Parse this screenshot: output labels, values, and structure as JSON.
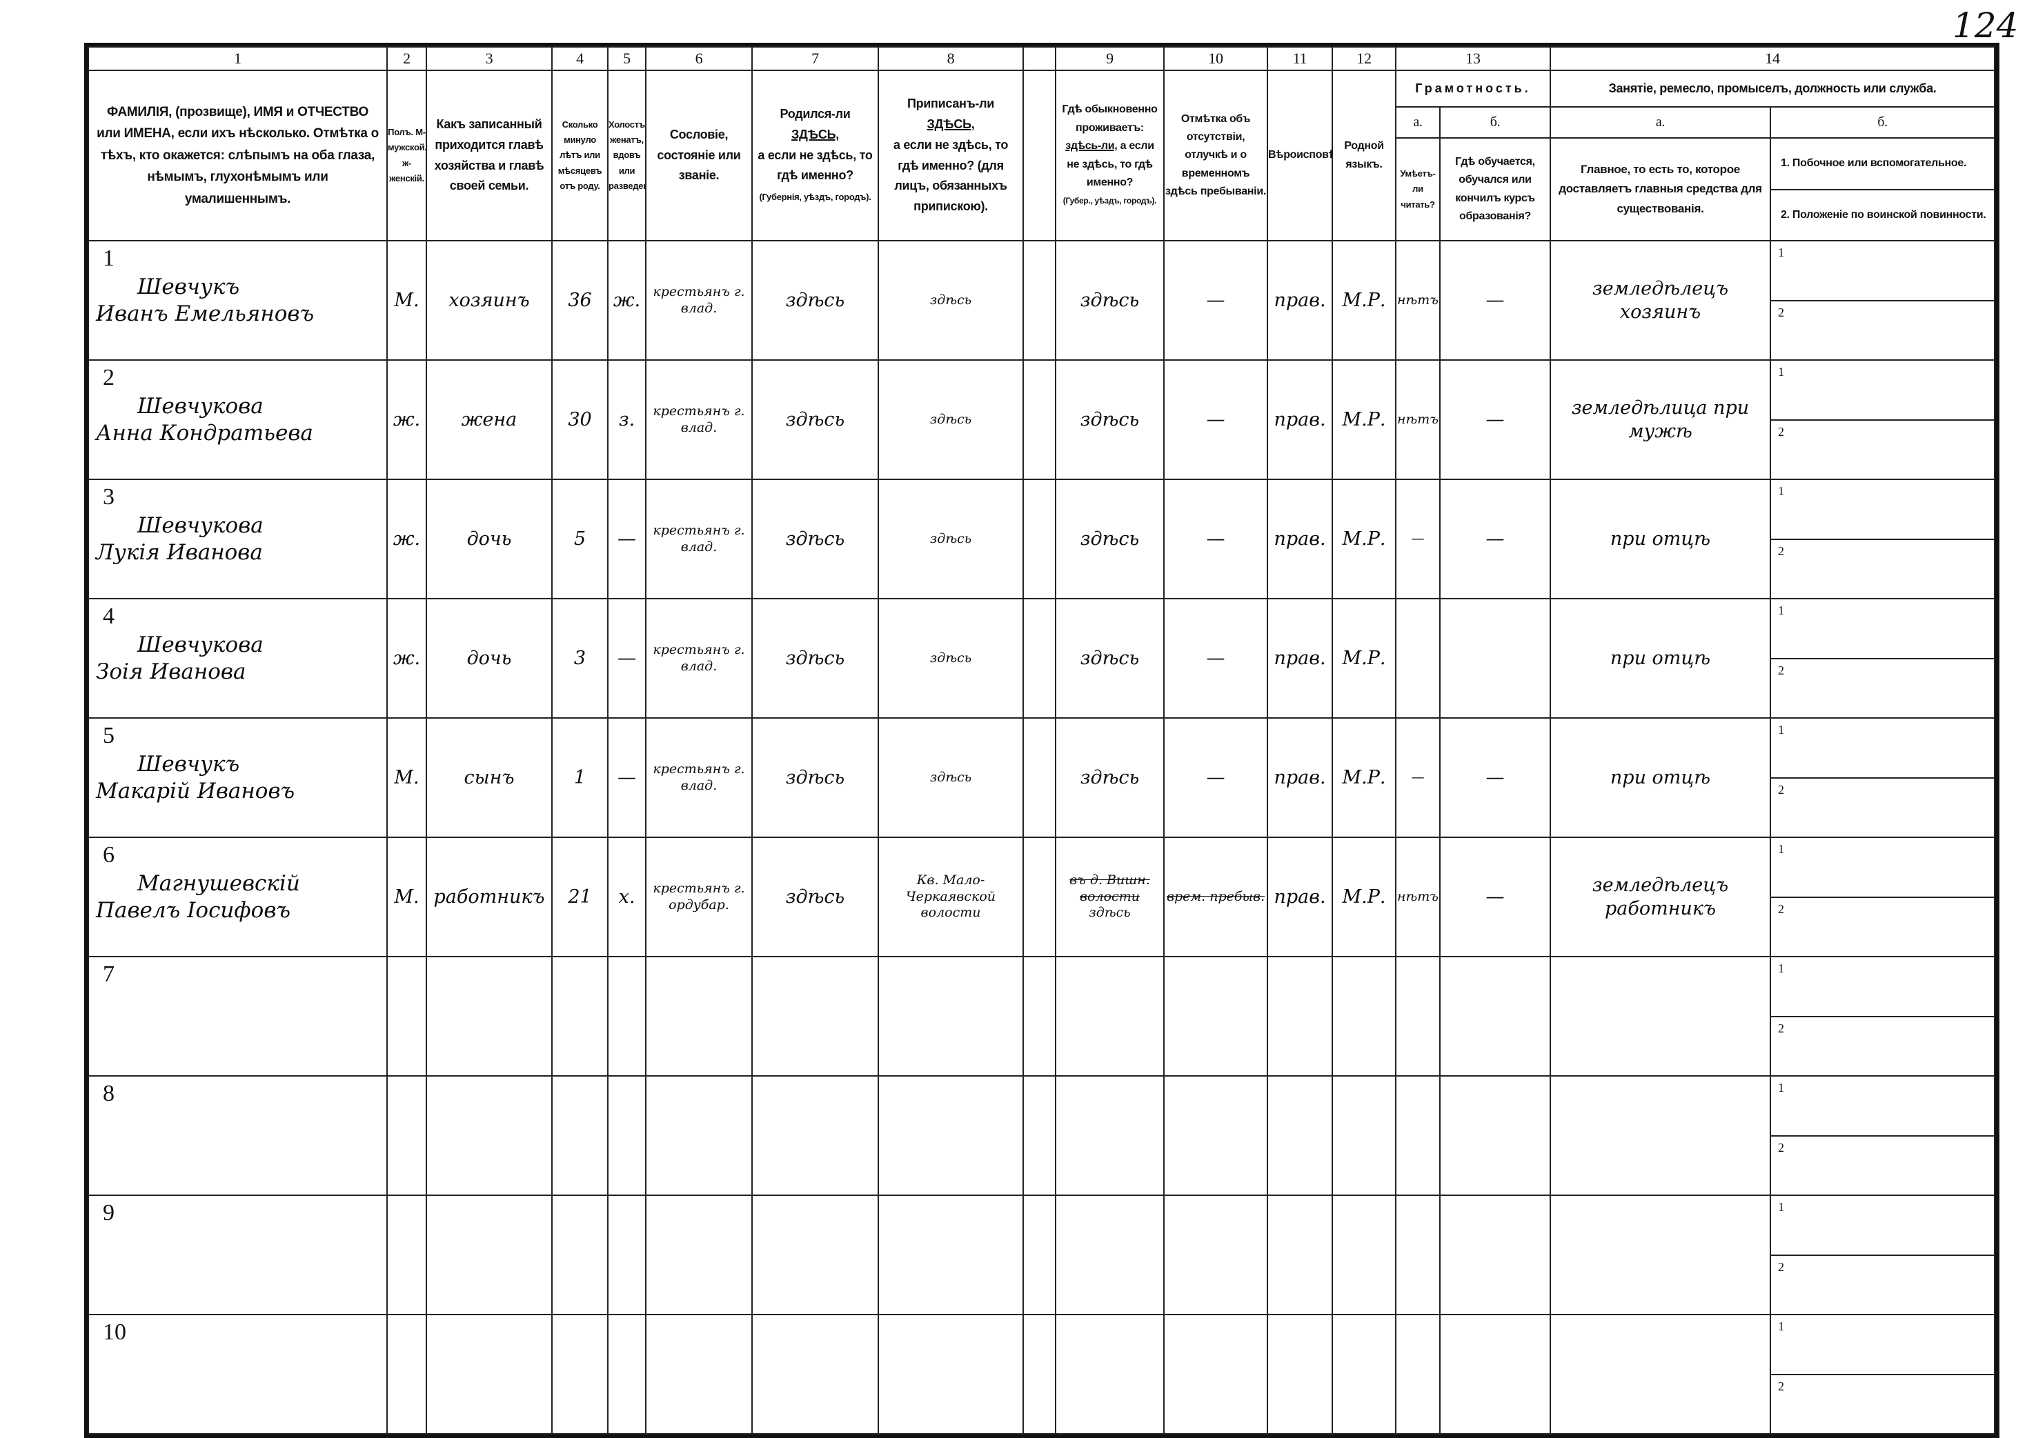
{
  "page_number": "124",
  "header": {
    "col_numbers": [
      "1",
      "2",
      "3",
      "4",
      "5",
      "6",
      "7",
      "8",
      "",
      "9",
      "10",
      "11",
      "12",
      "13",
      "14"
    ],
    "col1": "ФАМИЛІЯ, (прозвище), ИМЯ и ОТЧЕСТВО или ИМЕНА, если ихъ нѣсколько. Отмѣтка о тѣхъ, кто окажется: слѣпымъ на оба глаза, нѣмымъ, глухонѣмымъ или умалишеннымъ.",
    "col2": "Полъ. М-мужской. ж-женскій.",
    "col3": "Какъ записанный приходится главѣ хозяйства и главѣ своей семьи.",
    "col4": "Сколько минуло лѣтъ или мѣсяцевъ отъ роду.",
    "col5": "Холостъ, женатъ, вдовъ или разведенъ.",
    "col6": "Сословіе, состояніе или званіе.",
    "col7_a": "Родился-ли ",
    "col7_u": "ЗДѢСЬ,",
    "col7_b": "а если не здѣсь, то гдѣ именно?",
    "col7_c": "(Губернія, уѣздъ, городъ).",
    "col8_a": "Приписанъ-ли ",
    "col8_u": "ЗДѢСЬ,",
    "col8_b": "а если не здѣсь, то гдѣ именно? (для лицъ, обязанныхъ припискою).",
    "col9_a": "Гдѣ обыкновенно проживаетъ: ",
    "col9_u": "здѣсь-ли,",
    "col9_b": "а если не здѣсь, то гдѣ именно?",
    "col9_c": "(Губер., уѣздъ, городъ).",
    "col10": "Отмѣтка объ отсутствіи, отлучкѣ и о временномъ здѣсь пребываніи.",
    "col11": "Вѣроисповѣданіе.",
    "col12": "Родной языкъ.",
    "col13_title": "Грамотность.",
    "col13a_label": "а.",
    "col13b_label": "б.",
    "col13a": "Умѣетъ-ли читать?",
    "col13b": "Гдѣ обучается, обучался или кончилъ курсъ образованія?",
    "col14_title": "Занятіе, ремесло, промыселъ, должность или служба.",
    "col14a_label": "а.",
    "col14b_label": "б.",
    "col14a": "Главное, то есть то, которое доставляетъ главныя средства для существованія.",
    "col14b_1": "1. Побочное или вспомогательное.",
    "col14b_2": "2. Положеніе по воинской повинности."
  },
  "sub_labels": [
    "1",
    "2"
  ],
  "rows": [
    {
      "n": "1",
      "surname": "Шевчукъ",
      "given": "Иванъ Емельяновъ",
      "sex": "М.",
      "relation": "хозяинъ",
      "age": "36",
      "marital": "ж.",
      "estate": "крестьянъ г. влад.",
      "born": "здѣсь",
      "registered": "здѣсь",
      "resides": "здѣсь",
      "absence": "—",
      "religion": "прав.",
      "language": "М.Р.",
      "literate": "нѣтъ",
      "education": "—",
      "occupation": "земледѣлецъ хозяинъ",
      "occ1": "",
      "occ2": ""
    },
    {
      "n": "2",
      "surname": "Шевчукова",
      "given": "Анна Кондратьева",
      "sex": "ж.",
      "relation": "жена",
      "age": "30",
      "marital": "з.",
      "estate": "крестьянъ г. влад.",
      "born": "здѣсь",
      "registered": "здѣсь",
      "resides": "здѣсь",
      "absence": "—",
      "religion": "прав.",
      "language": "М.Р.",
      "literate": "нѣтъ",
      "education": "—",
      "occupation": "земледѣлица при мужѣ",
      "occ1": "",
      "occ2": ""
    },
    {
      "n": "3",
      "surname": "Шевчукова",
      "given": "Лукія Иванова",
      "sex": "ж.",
      "relation": "дочь",
      "age": "5",
      "marital": "—",
      "estate": "крестьянъ г. влад.",
      "born": "здѣсь",
      "registered": "здѣсь",
      "resides": "здѣсь",
      "absence": "—",
      "religion": "прав.",
      "language": "М.Р.",
      "literate": "—",
      "education": "—",
      "occupation": "при отцѣ",
      "occ1": "",
      "occ2": ""
    },
    {
      "n": "4",
      "surname": "Шевчукова",
      "given": "Зоія Иванова",
      "sex": "ж.",
      "relation": "дочь",
      "age": "3",
      "marital": "—",
      "estate": "крестьянъ г. влад.",
      "born": "здѣсь",
      "registered": "здѣсь",
      "resides": "здѣсь",
      "absence": "—",
      "religion": "прав.",
      "language": "М.Р.",
      "literate": "",
      "education": "",
      "occupation": "при отцѣ",
      "occ1": "",
      "occ2": ""
    },
    {
      "n": "5",
      "surname": "Шевчукъ",
      "given": "Макарій Ивановъ",
      "sex": "М.",
      "relation": "сынъ",
      "age": "1",
      "marital": "—",
      "estate": "крестьянъ г. влад.",
      "born": "здѣсь",
      "registered": "здѣсь",
      "resides": "здѣсь",
      "absence": "—",
      "religion": "прав.",
      "language": "М.Р.",
      "literate": "—",
      "education": "—",
      "occupation": "при отцѣ",
      "occ1": "",
      "occ2": ""
    },
    {
      "n": "6",
      "surname": "Магнушевскій",
      "given": "Павелъ Іосифовъ",
      "sex": "М.",
      "relation": "работникъ",
      "age": "21",
      "marital": "х.",
      "estate": "крестьянъ г. ордубар.",
      "born": "здѣсь",
      "registered": "Кв. Мало-Черкаявской волости",
      "resides_struck": "въ д. Вишн. волости",
      "resides": "здѣсь",
      "absence": "врем. пребыв.",
      "religion": "прав.",
      "language": "М.Р.",
      "literate": "нѣтъ",
      "education": "—",
      "occupation": "земледѣлецъ работникъ",
      "occ1": "",
      "occ2": ""
    },
    {
      "n": "7"
    },
    {
      "n": "8"
    },
    {
      "n": "9"
    },
    {
      "n": "10"
    }
  ]
}
